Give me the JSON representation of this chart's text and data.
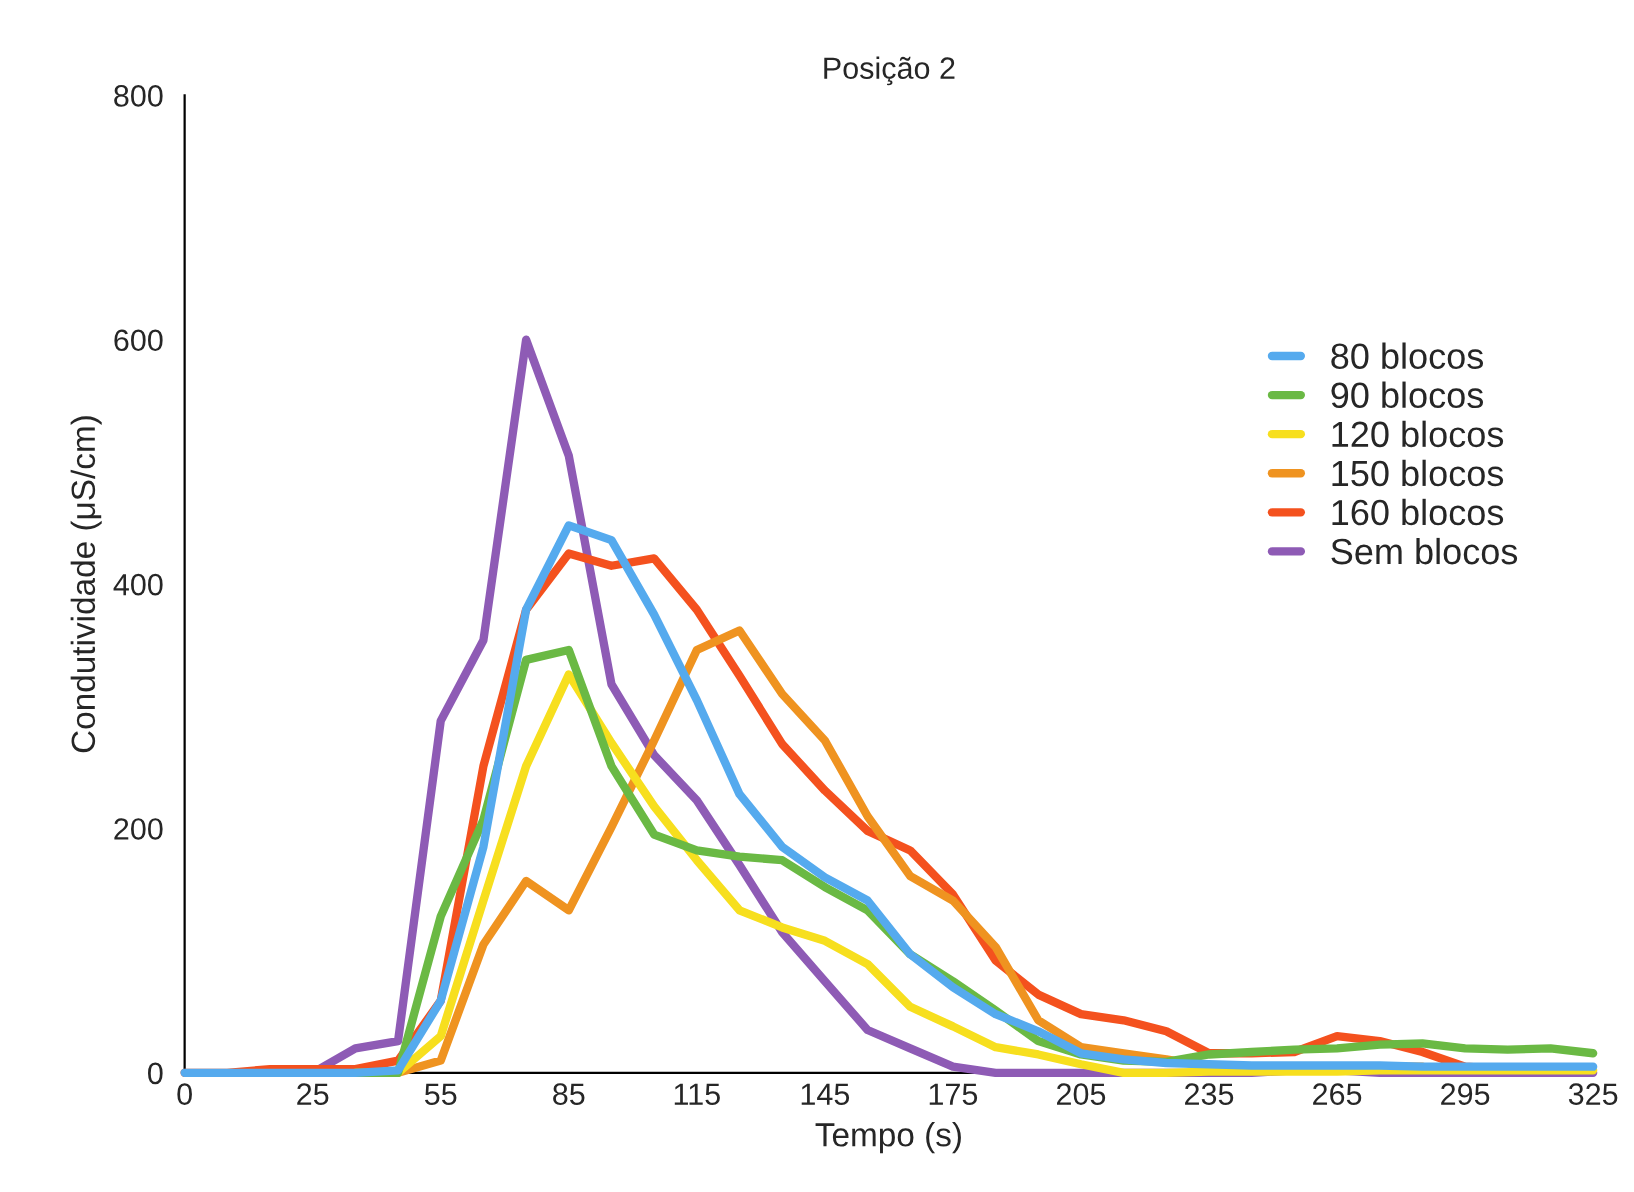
{
  "chart_data": {
    "type": "line",
    "title": "Posição 2",
    "xlabel": "Tempo (s)",
    "ylabel": "Condutividade (μS/cm)",
    "categories": [
      "0",
      null,
      null,
      "25",
      null,
      null,
      "55",
      null,
      null,
      "85",
      null,
      null,
      "115",
      null,
      null,
      "145",
      null,
      null,
      "175",
      null,
      null,
      "205",
      null,
      null,
      "235",
      null,
      null,
      "265",
      null,
      null,
      "295",
      null,
      null,
      "325"
    ],
    "series": [
      {
        "name": "80 blocos",
        "color": "#55aaee",
        "values": [
          0,
          0,
          0,
          0,
          0,
          2,
          59,
          185,
          379,
          448,
          436,
          375,
          305,
          228,
          185,
          160,
          141,
          97,
          70,
          48,
          34,
          16,
          11,
          8,
          7,
          6,
          6,
          6,
          6,
          5,
          5,
          5,
          5,
          5
        ]
      },
      {
        "name": "90 blocos",
        "color": "#6ab944",
        "values": [
          null,
          null,
          null,
          null,
          0,
          0,
          128,
          207,
          338,
          346,
          251,
          195,
          182,
          177,
          174,
          152,
          133,
          97,
          75,
          51,
          26,
          15,
          10,
          9,
          15,
          17,
          19,
          20,
          23,
          24,
          20,
          19,
          20,
          16
        ]
      },
      {
        "name": "120 blocos",
        "color": "#f7df1e",
        "values": [
          null,
          null,
          null,
          null,
          0,
          0,
          30,
          141,
          251,
          326,
          270,
          218,
          174,
          133,
          119,
          108,
          89,
          54,
          38,
          21,
          15,
          7,
          0,
          0,
          1,
          1,
          1,
          1,
          2,
          2,
          2,
          2,
          2,
          2
        ]
      },
      {
        "name": "150 blocos",
        "color": "#ef9320",
        "values": [
          null,
          null,
          null,
          null,
          0,
          0,
          10,
          105,
          157,
          133,
          201,
          272,
          346,
          362,
          310,
          272,
          210,
          161,
          141,
          103,
          43,
          21,
          16,
          11,
          5,
          5,
          5,
          5,
          5,
          5,
          null,
          null,
          null,
          null
        ]
      },
      {
        "name": "160 blocos",
        "color": "#f4511e",
        "values": [
          0,
          0,
          3,
          3,
          3,
          10,
          59,
          251,
          379,
          425,
          415,
          421,
          379,
          325,
          269,
          231,
          198,
          182,
          146,
          92,
          64,
          48,
          43,
          34,
          16,
          16,
          17,
          30,
          26,
          17,
          5,
          3,
          null,
          null
        ]
      },
      {
        "name": "Sem blocos",
        "color": "#8e5bb5",
        "values": [
          null,
          null,
          null,
          0,
          20,
          26,
          288,
          354,
          600,
          505,
          318,
          260,
          223,
          170,
          115,
          75,
          35,
          20,
          5,
          0,
          0,
          0,
          0,
          0,
          0,
          0,
          2,
          2,
          0,
          0,
          0,
          0,
          0,
          0
        ]
      }
    ],
    "ylim": [
      0,
      800
    ],
    "yticks": [
      0,
      200,
      400,
      600,
      800
    ],
    "grid": false,
    "legend": "right",
    "marker": "none",
    "line_style": "solid"
  }
}
